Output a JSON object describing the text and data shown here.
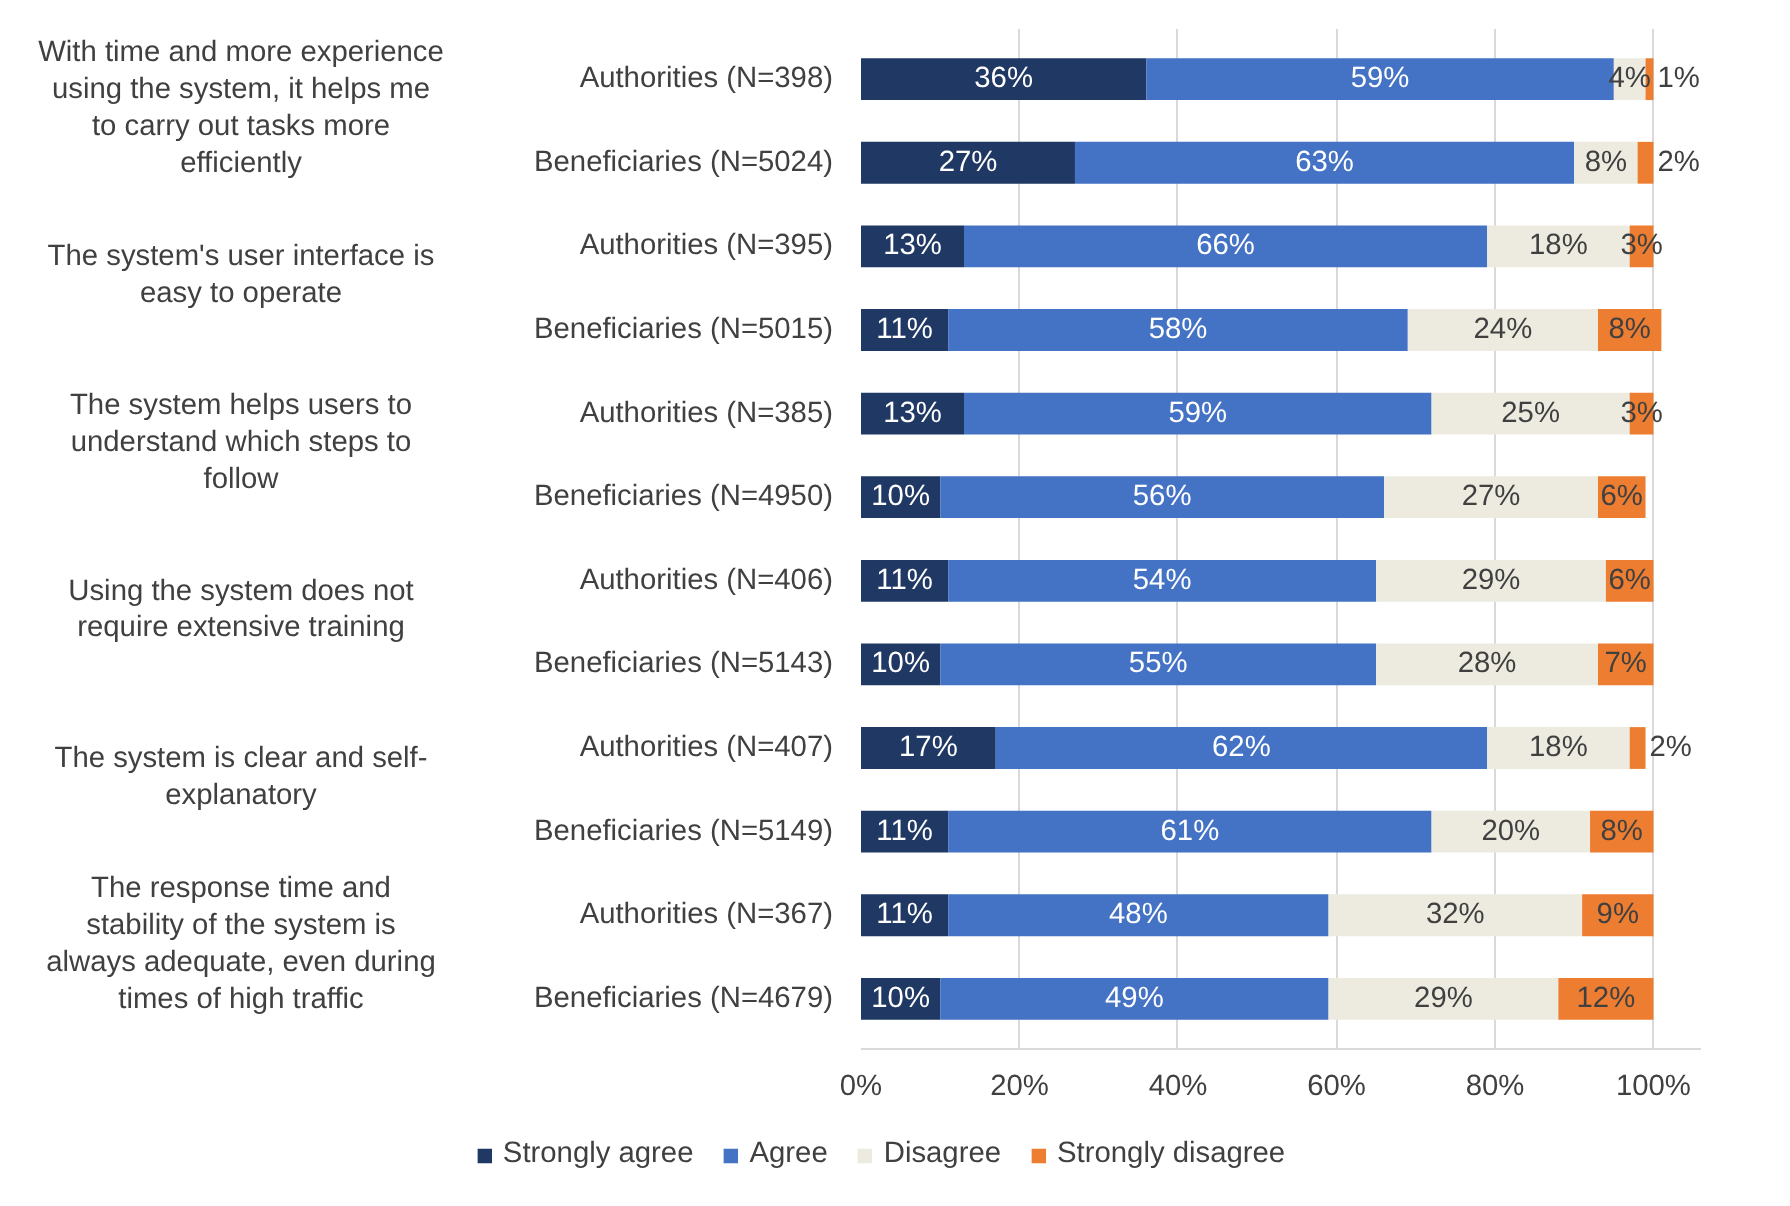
{
  "chart_data": {
    "type": "bar",
    "orientation": "horizontal",
    "stacked": true,
    "categories": [
      "Authorities (N=398)",
      "Beneficiaries (N=5024)",
      "Authorities (N=395)",
      "Beneficiaries (N=5015)",
      "Authorities (N=385)",
      "Beneficiaries (N=4950)",
      "Authorities (N=406)",
      "Beneficiaries (N=5143)",
      "Authorities (N=407)",
      "Beneficiaries (N=5149)",
      "Authorities (N=367)",
      "Beneficiaries (N=4679)"
    ],
    "annotations": [
      "With time and more experience using the system, it helps me to carry out tasks more efficiently",
      "The system's user interface is easy to operate",
      "The system helps users to understand which steps to follow",
      "Using the system does not require extensive training",
      "The system is clear and self-explanatory",
      "The response time and stability of the system is always adequate, even during times of high traffic"
    ],
    "series": [
      {
        "name": "Strongly agree",
        "color": "#203864",
        "values": [
          36,
          27,
          13,
          11,
          13,
          10,
          11,
          10,
          17,
          11,
          11,
          10
        ],
        "value_labels": [
          "36%",
          "27%",
          "13%",
          "11%",
          "13%",
          "10%",
          "11%",
          "10%",
          "17%",
          "11%",
          "11%",
          "10%"
        ]
      },
      {
        "name": "Agree",
        "color": "#4472c4",
        "values": [
          59,
          63,
          66,
          58,
          59,
          56,
          54,
          55,
          62,
          61,
          48,
          49
        ],
        "value_labels": [
          "59%",
          "63%",
          "66%",
          "58%",
          "59%",
          "56%",
          "54%",
          "55%",
          "62%",
          "61%",
          "48%",
          "49%"
        ]
      },
      {
        "name": "Disagree",
        "color": "#edebe0",
        "values": [
          4,
          8,
          18,
          24,
          25,
          27,
          29,
          28,
          18,
          20,
          32,
          29
        ],
        "value_labels": [
          "4%",
          "8%",
          "18%",
          "24%",
          "25%",
          "27%",
          "29%",
          "28%",
          "18%",
          "20%",
          "32%",
          "29%"
        ]
      },
      {
        "name": "Strongly disagree",
        "color": "#ed7d31",
        "values": [
          1,
          2,
          3,
          8,
          3,
          6,
          6,
          7,
          2,
          8,
          9,
          12
        ],
        "value_labels": [
          "1%",
          "2%",
          "3%",
          "8%",
          "3%",
          "6%",
          "6%",
          "7%",
          "2%",
          "8%",
          "9%",
          "12%"
        ]
      }
    ],
    "xlim": [
      0,
      106
    ],
    "xticks": [
      {
        "value": 0,
        "label": "0%"
      },
      {
        "value": 20,
        "label": "20%"
      },
      {
        "value": 40,
        "label": "40%"
      },
      {
        "value": 60,
        "label": "60%"
      },
      {
        "value": 80,
        "label": "80%"
      },
      {
        "value": 100,
        "label": "100%"
      }
    ],
    "grid": "x",
    "legend": "bottom"
  }
}
